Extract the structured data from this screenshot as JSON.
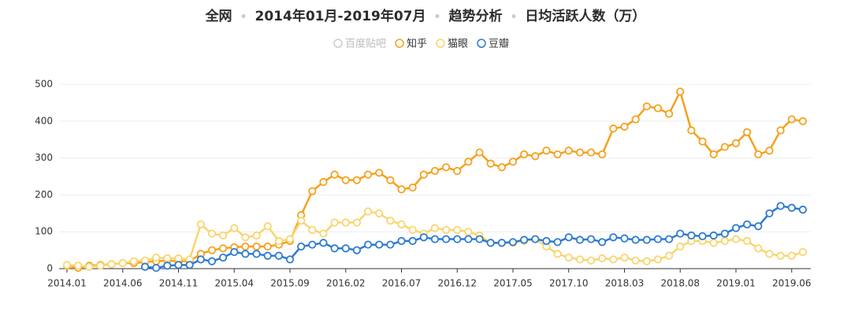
{
  "chart_data": {
    "type": "line",
    "title_parts": [
      "全网",
      "2014年01月-2019年07月",
      "趋势分析",
      "日均活跃人数（万）"
    ],
    "categories": [
      "2014.01",
      null,
      null,
      null,
      null,
      "2014.06",
      null,
      null,
      null,
      null,
      "2014.11",
      null,
      null,
      null,
      null,
      "2015.04",
      null,
      null,
      null,
      null,
      "2015.09",
      null,
      null,
      null,
      null,
      "2016.02",
      null,
      null,
      null,
      null,
      "2016.07",
      null,
      null,
      null,
      null,
      "2016.12",
      null,
      null,
      null,
      null,
      "2017.05",
      null,
      null,
      null,
      null,
      "2017.10",
      null,
      null,
      null,
      null,
      "2018.03",
      null,
      null,
      null,
      null,
      "2018.08",
      null,
      null,
      null,
      null,
      "2019.01",
      null,
      null,
      null,
      null,
      "2019.06",
      null
    ],
    "ylim": [
      0,
      500
    ],
    "yticks": [
      0,
      100,
      200,
      300,
      400,
      500
    ],
    "grid": true,
    "series": [
      {
        "name": "百度贴吧",
        "color": "#cccccc",
        "visible": false,
        "values": [
          null,
          null,
          null,
          null,
          null,
          null,
          null,
          null,
          null,
          null,
          null,
          null,
          null,
          null,
          null,
          null,
          null,
          null,
          null,
          null,
          null,
          null,
          null,
          null,
          null,
          null,
          null,
          null,
          null,
          null,
          null,
          null,
          null,
          null,
          null,
          null,
          null,
          null,
          null,
          null,
          null,
          null,
          null,
          null,
          null,
          null,
          null,
          null,
          null,
          null,
          null,
          null,
          null,
          null,
          null,
          null,
          null,
          null,
          null,
          null,
          null,
          null,
          null,
          null,
          null,
          null,
          null
        ]
      },
      {
        "name": "知乎",
        "color": "#f5a11c",
        "visible": true,
        "values": [
          8,
          2,
          8,
          10,
          12,
          15,
          15,
          18,
          20,
          22,
          20,
          20,
          40,
          50,
          55,
          58,
          60,
          60,
          60,
          65,
          75,
          145,
          210,
          235,
          255,
          240,
          240,
          255,
          260,
          240,
          215,
          220,
          255,
          265,
          275,
          265,
          290,
          315,
          285,
          275,
          290,
          310,
          305,
          320,
          310,
          320,
          315,
          315,
          310,
          380,
          385,
          405,
          440,
          435,
          420,
          480,
          375,
          345,
          310,
          330,
          340,
          370,
          310,
          320,
          375,
          405,
          400
        ]
      },
      {
        "name": "猫眼",
        "color": "#f9d56e",
        "visible": true,
        "values": [
          10,
          8,
          5,
          8,
          12,
          15,
          20,
          22,
          30,
          28,
          28,
          25,
          120,
          95,
          90,
          110,
          85,
          90,
          115,
          75,
          80,
          130,
          105,
          95,
          125,
          125,
          125,
          155,
          150,
          130,
          120,
          105,
          95,
          110,
          105,
          105,
          100,
          90,
          70,
          70,
          70,
          75,
          80,
          60,
          40,
          30,
          25,
          22,
          28,
          25,
          30,
          22,
          20,
          25,
          35,
          60,
          75,
          75,
          70,
          75,
          80,
          75,
          55,
          40,
          35,
          35,
          45
        ]
      },
      {
        "name": "豆瓣",
        "color": "#2d7bd0",
        "visible": true,
        "values": [
          null,
          null,
          null,
          null,
          null,
          null,
          null,
          5,
          2,
          8,
          10,
          10,
          25,
          20,
          30,
          45,
          40,
          40,
          35,
          35,
          25,
          60,
          65,
          70,
          55,
          55,
          50,
          65,
          65,
          65,
          75,
          75,
          85,
          80,
          80,
          80,
          80,
          80,
          70,
          70,
          72,
          78,
          80,
          75,
          72,
          85,
          78,
          80,
          72,
          85,
          82,
          78,
          78,
          80,
          80,
          95,
          90,
          88,
          90,
          95,
          110,
          120,
          115,
          150,
          170,
          165,
          160
        ]
      }
    ]
  }
}
